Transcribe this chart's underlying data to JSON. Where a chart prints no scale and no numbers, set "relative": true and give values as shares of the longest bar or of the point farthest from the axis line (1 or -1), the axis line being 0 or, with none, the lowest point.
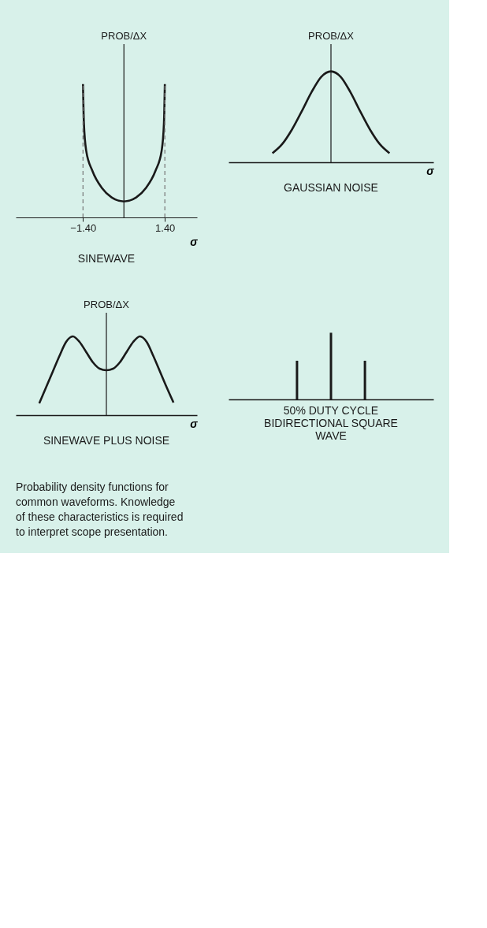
{
  "chart_data": [
    {
      "type": "line",
      "title": "SINEWAVE",
      "xlabel": "σ",
      "ylabel": "PROB/ΔX",
      "relative": true,
      "tick_labels": "x",
      "x": [
        -1.4,
        -1.37,
        -1.29,
        -1.08,
        -0.75,
        -0.42,
        0,
        0.42,
        0.75,
        1.08,
        1.29,
        1.37,
        1.4
      ],
      "series": [
        {
          "color": "#1a1a1a",
          "values": [
            1,
            0.71,
            0.5,
            0.35,
            0.22,
            0.15,
            0.12,
            0.15,
            0.22,
            0.35,
            0.5,
            0.71,
            1
          ]
        }
      ],
      "xlim": [
        -3.7,
        2.5
      ],
      "xticks": [
        {
          "value": -1.4,
          "label": "−1.40"
        },
        {
          "value": 1.4,
          "label": "1.40"
        }
      ],
      "ref_lines": [
        {
          "axis": "x",
          "value": -1.4,
          "line_style": "dashed",
          "color": "#777777"
        },
        {
          "axis": "x",
          "value": 1.4,
          "line_style": "dashed",
          "color": "#777777"
        }
      ]
    },
    {
      "type": "line",
      "title": "GAUSSIAN NOISE",
      "xlabel": "σ",
      "ylabel": "PROB/ΔX",
      "relative": true,
      "tick_labels": false,
      "categories": [
        null,
        null,
        null,
        null,
        null,
        null,
        null,
        null,
        null,
        null,
        null,
        null,
        null,
        null,
        null,
        null,
        null,
        null,
        null,
        null,
        null
      ],
      "series": [
        {
          "color": "#1a1a1a",
          "values": [
            null,
            null,
            null,
            null,
            0.1,
            0.2,
            0.36,
            0.56,
            0.77,
            0.94,
            1,
            0.94,
            0.77,
            0.56,
            0.36,
            0.2,
            0.1,
            null,
            null,
            null,
            null
          ]
        }
      ]
    },
    {
      "type": "line",
      "title": "SINEWAVE PLUS NOISE",
      "xlabel": "σ",
      "ylabel": "PROB/ΔX",
      "relative": true,
      "tick_labels": false,
      "categories": [
        null,
        null,
        null,
        null,
        null,
        null,
        null,
        null,
        null,
        null,
        null,
        null,
        null,
        null,
        null,
        null,
        null,
        null,
        null,
        null,
        null,
        null,
        null,
        null,
        null,
        null,
        null
      ],
      "series": [
        {
          "color": "#1a1a1a",
          "values": [
            null,
            null,
            null,
            0.15,
            0.35,
            0.55,
            0.75,
            0.93,
            1,
            0.93,
            0.8,
            0.67,
            0.59,
            0.57,
            0.59,
            0.67,
            0.8,
            0.93,
            1,
            0.93,
            0.75,
            0.55,
            0.35,
            0.16,
            null,
            null,
            null
          ]
        }
      ]
    },
    {
      "type": "bar",
      "title": "50% DUTY CYCLE\nBIDIRECTIONAL SQUARE\nWAVE",
      "relative": true,
      "tick_labels": false,
      "categories": [
        null,
        null,
        null
      ],
      "series": [
        {
          "color": "#1a1a1a",
          "values": [
            0.58,
            1,
            0.58
          ]
        }
      ],
      "annotations": [
        "Probability density functions for\ncommon waveforms. Knowledge\nof these characteristics is required\nto interpret scope presentation."
      ]
    }
  ]
}
